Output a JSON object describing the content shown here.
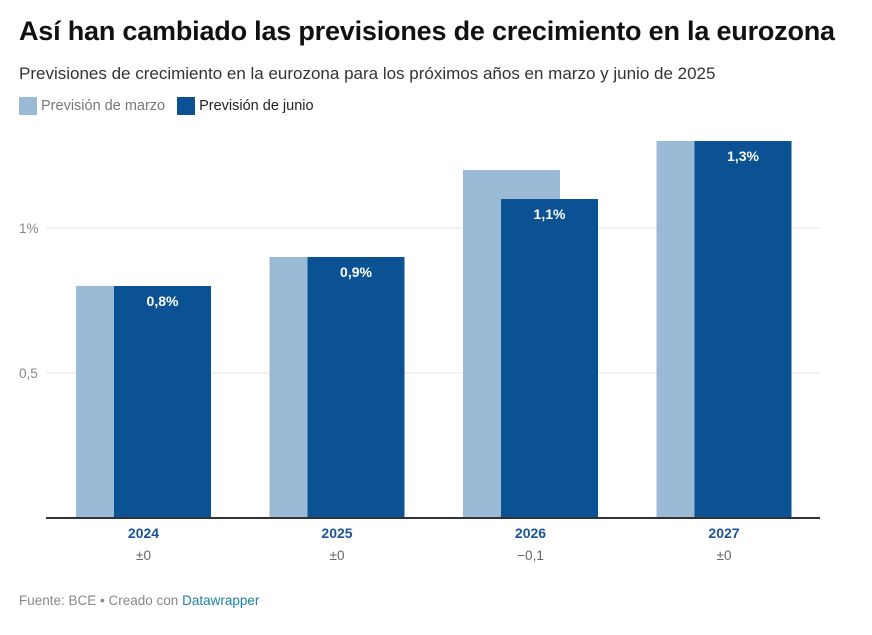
{
  "title": "Así han cambiado las previsiones de crecimiento en la eurozona",
  "subtitle": "Previsiones de crecimiento en la eurozona para los próximos años en marzo y junio de 2025",
  "footer": {
    "source_text": "Fuente: BCE • Creado con",
    "link_text": "Datawrapper"
  },
  "colors": {
    "march": "#9bbad6",
    "june": "#0a5293",
    "axis": "#333333",
    "grid": "#e6e6e6",
    "year_label": "#1a5496",
    "diff_label": "#666666",
    "value_label": "#ffffff"
  },
  "chart_data": {
    "type": "bar",
    "categories": [
      "2024",
      "2025",
      "2026",
      "2027"
    ],
    "series": [
      {
        "name": "Previsión de marzo",
        "values": [
          0.8,
          0.9,
          1.2,
          1.3
        ]
      },
      {
        "name": "Previsión de junio",
        "values": [
          0.8,
          0.9,
          1.1,
          1.3
        ]
      }
    ],
    "value_labels": [
      "0,8%",
      "0,9%",
      "1,1%",
      "1,3%"
    ],
    "differences": [
      "±0",
      "±0",
      "−0,1",
      "±0"
    ],
    "y_ticks": [
      {
        "value": 0.5,
        "label": "0,5"
      },
      {
        "value": 1,
        "label": "1%"
      }
    ],
    "ylim": [
      0,
      1.3
    ],
    "grid": true,
    "legend_position": "top-left",
    "xlabel": "",
    "ylabel": ""
  }
}
